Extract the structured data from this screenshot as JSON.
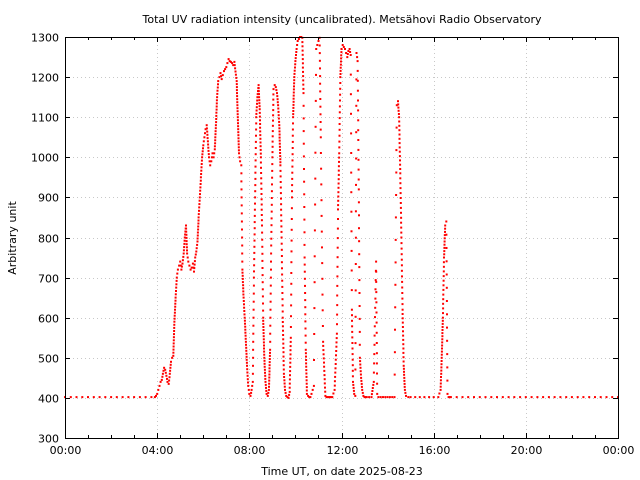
{
  "chart_data": {
    "type": "scatter",
    "title": "Total UV radiation intensity (uncalibrated). Metsähovi Radio Observatory",
    "xlabel": "Time UT, on date 2025-08-23",
    "ylabel": "Arbitrary unit",
    "xlim": [
      0,
      24
    ],
    "ylim": [
      300,
      1300
    ],
    "x_ticks": [
      {
        "value": 0,
        "label": "00:00"
      },
      {
        "value": 4,
        "label": "04:00"
      },
      {
        "value": 8,
        "label": "08:00"
      },
      {
        "value": 12,
        "label": "12:00"
      },
      {
        "value": 16,
        "label": "16:00"
      },
      {
        "value": 20,
        "label": "20:00"
      },
      {
        "value": 24,
        "label": "00:00"
      }
    ],
    "y_ticks": [
      {
        "value": 300,
        "label": "300"
      },
      {
        "value": 400,
        "label": "400"
      },
      {
        "value": 500,
        "label": "500"
      },
      {
        "value": 600,
        "label": "600"
      },
      {
        "value": 700,
        "label": "700"
      },
      {
        "value": 800,
        "label": "800"
      },
      {
        "value": 900,
        "label": "900"
      },
      {
        "value": 1000,
        "label": "1000"
      },
      {
        "value": 1100,
        "label": "1100"
      },
      {
        "value": 1200,
        "label": "1200"
      },
      {
        "value": 1300,
        "label": "1300"
      }
    ],
    "grid": true,
    "series": [
      {
        "color": "#ff0000",
        "marker": "dot",
        "points": [
          [
            0,
            402
          ],
          [
            0.25,
            402
          ],
          [
            0.5,
            402
          ],
          [
            0.75,
            402
          ],
          [
            1,
            402
          ],
          [
            1.25,
            402
          ],
          [
            1.5,
            402
          ],
          [
            1.75,
            402
          ],
          [
            2,
            402
          ],
          [
            2.25,
            402
          ],
          [
            2.5,
            402
          ],
          [
            2.75,
            402
          ],
          [
            3,
            402
          ],
          [
            3.25,
            402
          ],
          [
            3.5,
            402
          ],
          [
            3.75,
            402
          ],
          [
            3.9,
            402
          ],
          [
            3.95,
            405
          ],
          [
            4.0,
            410
          ],
          [
            4.05,
            420
          ],
          [
            4.1,
            430
          ],
          [
            4.15,
            440
          ],
          [
            4.2,
            445
          ],
          [
            4.25,
            460
          ],
          [
            4.3,
            475
          ],
          [
            4.35,
            470
          ],
          [
            4.4,
            455
          ],
          [
            4.45,
            440
          ],
          [
            4.5,
            435
          ],
          [
            4.55,
            460
          ],
          [
            4.6,
            490
          ],
          [
            4.65,
            500
          ],
          [
            4.7,
            505
          ],
          [
            4.75,
            590
          ],
          [
            4.8,
            650
          ],
          [
            4.85,
            700
          ],
          [
            4.9,
            720
          ],
          [
            4.95,
            730
          ],
          [
            5.0,
            740
          ],
          [
            5.05,
            720
          ],
          [
            5.1,
            735
          ],
          [
            5.15,
            760
          ],
          [
            5.2,
            800
          ],
          [
            5.25,
            830
          ],
          [
            5.3,
            760
          ],
          [
            5.35,
            740
          ],
          [
            5.4,
            730
          ],
          [
            5.45,
            720
          ],
          [
            5.5,
            725
          ],
          [
            5.55,
            735
          ],
          [
            5.6,
            715
          ],
          [
            5.65,
            750
          ],
          [
            5.7,
            765
          ],
          [
            5.75,
            790
          ],
          [
            5.8,
            850
          ],
          [
            5.85,
            900
          ],
          [
            5.9,
            950
          ],
          [
            5.95,
            1000
          ],
          [
            6.0,
            1030
          ],
          [
            6.05,
            1050
          ],
          [
            6.1,
            1070
          ],
          [
            6.15,
            1080
          ],
          [
            6.2,
            1040
          ],
          [
            6.25,
            1000
          ],
          [
            6.3,
            980
          ],
          [
            6.35,
            990
          ],
          [
            6.4,
            1010
          ],
          [
            6.45,
            1000
          ],
          [
            6.5,
            1020
          ],
          [
            6.55,
            1080
          ],
          [
            6.6,
            1150
          ],
          [
            6.65,
            1190
          ],
          [
            6.7,
            1200
          ],
          [
            6.75,
            1210
          ],
          [
            6.8,
            1195
          ],
          [
            6.85,
            1205
          ],
          [
            6.9,
            1215
          ],
          [
            6.95,
            1220
          ],
          [
            7.0,
            1225
          ],
          [
            7.05,
            1235
          ],
          [
            7.1,
            1245
          ],
          [
            7.15,
            1240
          ],
          [
            7.2,
            1238
          ],
          [
            7.25,
            1235
          ],
          [
            7.3,
            1230
          ],
          [
            7.35,
            1238
          ],
          [
            7.45,
            1190
          ],
          [
            7.5,
            1100
          ],
          [
            7.55,
            1010
          ],
          [
            7.6,
            990
          ],
          [
            7.65,
            980
          ],
          [
            7.7,
            720
          ],
          [
            7.75,
            650
          ],
          [
            7.8,
            600
          ],
          [
            7.85,
            540
          ],
          [
            7.9,
            480
          ],
          [
            7.95,
            430
          ],
          [
            8.0,
            410
          ],
          [
            8.05,
            405
          ],
          [
            8.1,
            420
          ],
          [
            8.15,
            440
          ],
          [
            8.2,
            700
          ],
          [
            8.25,
            900
          ],
          [
            8.3,
            1100
          ],
          [
            8.35,
            1150
          ],
          [
            8.4,
            1180
          ],
          [
            8.45,
            1120
          ],
          [
            8.5,
            1000
          ],
          [
            8.55,
            830
          ],
          [
            8.6,
            600
          ],
          [
            8.65,
            500
          ],
          [
            8.7,
            440
          ],
          [
            8.75,
            410
          ],
          [
            8.8,
            405
          ],
          [
            8.85,
            420
          ],
          [
            8.9,
            520
          ],
          [
            8.95,
            780
          ],
          [
            9.0,
            1000
          ],
          [
            9.05,
            1170
          ],
          [
            9.1,
            1180
          ],
          [
            9.15,
            1175
          ],
          [
            9.2,
            1160
          ],
          [
            9.25,
            1130
          ],
          [
            9.3,
            1080
          ],
          [
            9.35,
            980
          ],
          [
            9.4,
            800
          ],
          [
            9.45,
            600
          ],
          [
            9.5,
            460
          ],
          [
            9.55,
            420
          ],
          [
            9.6,
            405
          ],
          [
            9.65,
            402
          ],
          [
            9.7,
            400
          ],
          [
            9.75,
            415
          ],
          [
            9.8,
            550
          ],
          [
            9.85,
            900
          ],
          [
            9.9,
            1100
          ],
          [
            9.95,
            1200
          ],
          [
            10.0,
            1240
          ],
          [
            10.05,
            1270
          ],
          [
            10.1,
            1290
          ],
          [
            10.15,
            1295
          ],
          [
            10.2,
            1300
          ],
          [
            10.25,
            1300
          ],
          [
            10.3,
            1298
          ],
          [
            10.35,
            1160
          ],
          [
            10.4,
            750
          ],
          [
            10.45,
            520
          ],
          [
            10.5,
            410
          ],
          [
            10.55,
            405
          ],
          [
            10.6,
            402
          ],
          [
            10.65,
            402
          ],
          [
            10.7,
            410
          ],
          [
            10.8,
            430
          ],
          [
            10.9,
            1270
          ],
          [
            10.95,
            1280
          ],
          [
            11.0,
            1290
          ],
          [
            11.05,
            1298
          ],
          [
            11.1,
            1050
          ],
          [
            11.2,
            540
          ],
          [
            11.3,
            405
          ],
          [
            11.35,
            402
          ],
          [
            11.4,
            402
          ],
          [
            11.45,
            402
          ],
          [
            11.5,
            402
          ],
          [
            11.55,
            402
          ],
          [
            11.6,
            402
          ],
          [
            11.7,
            420
          ],
          [
            11.8,
            560
          ],
          [
            11.85,
            870
          ],
          [
            11.9,
            1010
          ],
          [
            11.95,
            1200
          ],
          [
            12.0,
            1270
          ],
          [
            12.05,
            1280
          ],
          [
            12.1,
            1275
          ],
          [
            12.15,
            1270
          ],
          [
            12.2,
            1260
          ],
          [
            12.25,
            1250
          ],
          [
            12.3,
            1265
          ],
          [
            12.35,
            1270
          ],
          [
            12.4,
            1255
          ],
          [
            12.45,
            620
          ],
          [
            12.5,
            440
          ],
          [
            12.55,
            410
          ],
          [
            12.6,
            405
          ],
          [
            12.65,
            1260
          ],
          [
            12.7,
            1240
          ],
          [
            12.75,
            920
          ],
          [
            12.8,
            500
          ],
          [
            12.85,
            450
          ],
          [
            12.9,
            420
          ],
          [
            12.95,
            405
          ],
          [
            13.0,
            402
          ],
          [
            13.05,
            402
          ],
          [
            13.1,
            402
          ],
          [
            13.2,
            402
          ],
          [
            13.3,
            402
          ],
          [
            13.4,
            440
          ],
          [
            13.5,
            740
          ],
          [
            13.55,
            410
          ],
          [
            13.6,
            402
          ],
          [
            13.7,
            402
          ],
          [
            13.8,
            402
          ],
          [
            13.9,
            402
          ],
          [
            14.0,
            402
          ],
          [
            14.1,
            402
          ],
          [
            14.2,
            402
          ],
          [
            14.3,
            402
          ],
          [
            14.4,
            1130
          ],
          [
            14.45,
            1140
          ],
          [
            14.5,
            1100
          ],
          [
            14.55,
            960
          ],
          [
            14.6,
            800
          ],
          [
            14.65,
            620
          ],
          [
            14.7,
            480
          ],
          [
            14.75,
            420
          ],
          [
            14.8,
            405
          ],
          [
            14.9,
            402
          ],
          [
            15.0,
            402
          ],
          [
            15.2,
            402
          ],
          [
            15.4,
            402
          ],
          [
            15.6,
            402
          ],
          [
            15.8,
            402
          ],
          [
            16.0,
            402
          ],
          [
            16.2,
            402
          ],
          [
            16.3,
            420
          ],
          [
            16.35,
            500
          ],
          [
            16.4,
            600
          ],
          [
            16.45,
            750
          ],
          [
            16.5,
            830
          ],
          [
            16.55,
            840
          ],
          [
            16.6,
            410
          ],
          [
            16.65,
            402
          ],
          [
            16.7,
            402
          ],
          [
            16.75,
            402
          ],
          [
            17,
            402
          ],
          [
            17.25,
            402
          ],
          [
            17.5,
            402
          ],
          [
            17.75,
            402
          ],
          [
            18,
            402
          ],
          [
            18.25,
            402
          ],
          [
            18.5,
            402
          ],
          [
            18.75,
            402
          ],
          [
            19,
            402
          ],
          [
            19.25,
            402
          ],
          [
            19.5,
            402
          ],
          [
            19.75,
            402
          ],
          [
            20,
            402
          ],
          [
            20.25,
            402
          ],
          [
            20.5,
            402
          ],
          [
            20.75,
            402
          ],
          [
            21,
            402
          ],
          [
            21.25,
            402
          ],
          [
            21.5,
            402
          ],
          [
            21.75,
            402
          ],
          [
            22,
            402
          ],
          [
            22.25,
            402
          ],
          [
            22.5,
            402
          ],
          [
            22.75,
            402
          ],
          [
            23,
            402
          ],
          [
            23.25,
            402
          ],
          [
            23.5,
            402
          ],
          [
            23.75,
            402
          ],
          [
            24,
            402
          ]
        ]
      }
    ]
  }
}
